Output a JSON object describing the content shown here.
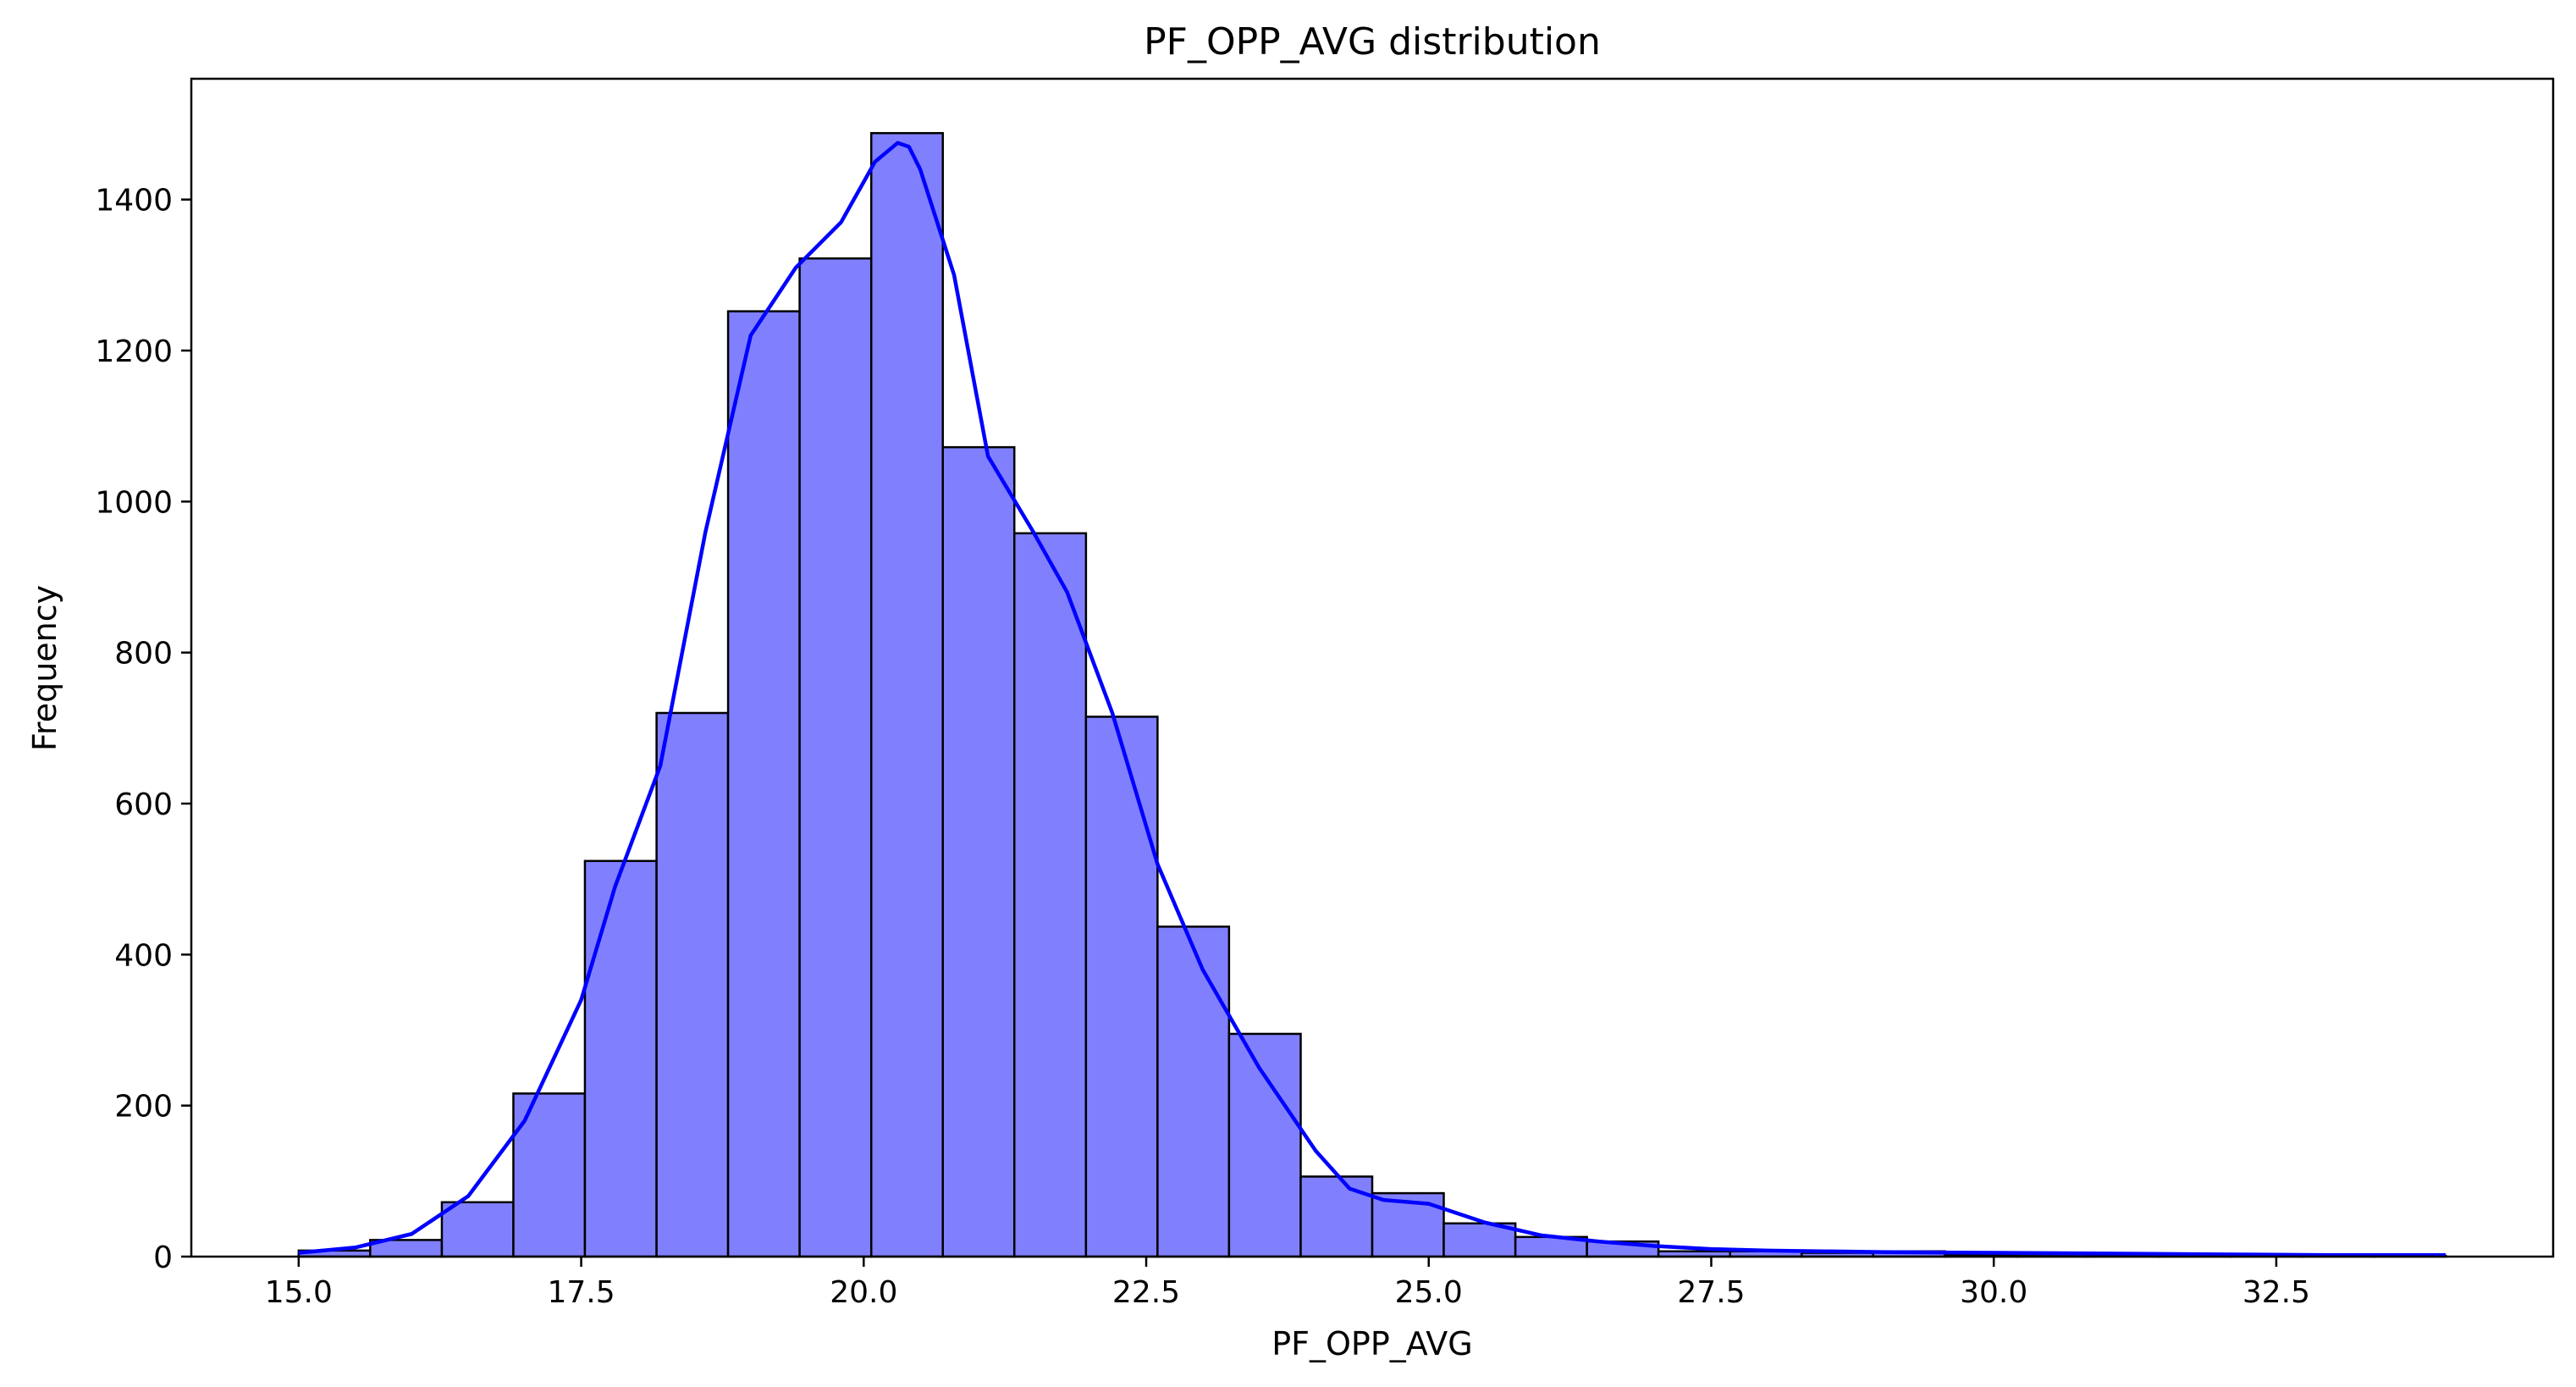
{
  "chart_data": {
    "type": "bar",
    "title": "PF_OPP_AVG distribution",
    "xlabel": "PF_OPP_AVG",
    "ylabel": "Frequency",
    "xlim": [
      14.05,
      34.95
    ],
    "ylim": [
      0,
      1560
    ],
    "x_ticks": [
      15.0,
      17.5,
      20.0,
      22.5,
      25.0,
      27.5,
      30.0,
      32.5
    ],
    "x_tick_labels": [
      "15.0",
      "17.5",
      "20.0",
      "22.5",
      "25.0",
      "27.5",
      "30.0",
      "32.5"
    ],
    "y_ticks": [
      0,
      200,
      400,
      600,
      800,
      1000,
      1200,
      1400
    ],
    "y_tick_labels": [
      "0",
      "200",
      "400",
      "600",
      "800",
      "1000",
      "1200",
      "1400"
    ],
    "bin_edges": [
      15.0,
      15.633,
      16.267,
      16.9,
      17.533,
      18.167,
      18.8,
      19.433,
      20.067,
      20.7,
      21.333,
      21.967,
      22.6,
      23.233,
      23.867,
      24.5,
      25.133,
      25.767,
      26.4,
      27.033,
      27.667,
      28.3,
      28.933,
      29.567,
      30.2,
      30.833,
      31.467,
      32.1,
      32.733,
      33.367,
      34.0
    ],
    "values": [
      8,
      22,
      72,
      216,
      524,
      720,
      1252,
      1322,
      1488,
      1072,
      958,
      715,
      437,
      295,
      106,
      84,
      44,
      26,
      20,
      7,
      7,
      5,
      7,
      2,
      3,
      2,
      2,
      1,
      1,
      1
    ],
    "kde": {
      "x": [
        15.0,
        15.5,
        16.0,
        16.5,
        17.0,
        17.5,
        17.8,
        18.2,
        18.6,
        19.0,
        19.4,
        19.8,
        20.1,
        20.3,
        20.4,
        20.5,
        20.8,
        21.1,
        21.5,
        21.8,
        22.2,
        22.6,
        23.0,
        23.5,
        24.0,
        24.3,
        24.6,
        25.0,
        25.5,
        26.0,
        26.5,
        27.0,
        27.5,
        28.0,
        29.0,
        30.0,
        31.0,
        32.0,
        33.0,
        34.0
      ],
      "y": [
        5,
        12,
        30,
        80,
        180,
        340,
        490,
        650,
        960,
        1220,
        1310,
        1370,
        1450,
        1475,
        1470,
        1440,
        1300,
        1060,
        960,
        880,
        720,
        520,
        380,
        250,
        140,
        90,
        75,
        70,
        45,
        28,
        20,
        14,
        10,
        8,
        6,
        5,
        4,
        3,
        2,
        2
      ]
    },
    "colors": {
      "bar_fill": "#8080ff",
      "bar_edge": "#000000",
      "kde_line": "#0000ff"
    },
    "grid": false,
    "legend": "none"
  }
}
